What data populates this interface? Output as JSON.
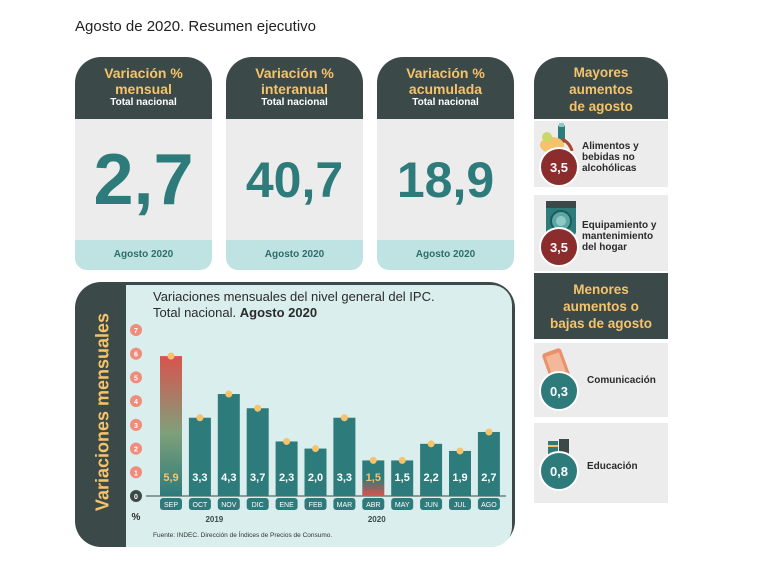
{
  "header": {
    "title": "Agosto de 2020. Resumen ejecutivo"
  },
  "kpis": [
    {
      "line1": "Variación %",
      "line2": "mensual",
      "scope": "Total nacional",
      "value": "2,7",
      "period": "Agosto 2020"
    },
    {
      "line1": "Variación %",
      "line2": "interanual",
      "scope": "Total nacional",
      "value": "40,7",
      "period": "Agosto 2020"
    },
    {
      "line1": "Variación %",
      "line2": "acumulada",
      "scope": "Total nacional",
      "value": "18,9",
      "period": "Agosto 2020"
    }
  ],
  "mayores": {
    "title_lines": [
      "Mayores",
      "aumentos",
      "de agosto"
    ],
    "items": [
      {
        "value": "3,5",
        "label_lines": [
          "Alimentos y",
          "bebidas no",
          "alcohólicas"
        ],
        "icon": "groceries-icon"
      },
      {
        "value": "3,5",
        "label_lines": [
          "Equipamiento y",
          "mantenimiento",
          "del hogar"
        ],
        "icon": "washing-machine-icon"
      }
    ]
  },
  "menores": {
    "title_lines": [
      "Menores",
      "aumentos o",
      "bajas de agosto"
    ],
    "items": [
      {
        "value": "0,3",
        "label_lines": [
          "Comunicación"
        ],
        "icon": "phone-icon"
      },
      {
        "value": "0,8",
        "label_lines": [
          "Educación"
        ],
        "icon": "books-icon"
      }
    ]
  },
  "colors": {
    "dark": "#3b4a48",
    "accent": "#f6c36a",
    "teal": "#2e7b7b",
    "light_teal": "#bfe3e2",
    "red": "#d9534f"
  },
  "chart_data": {
    "type": "bar",
    "title": "Variaciones mensuales del nivel general del IPC.",
    "subtitle_plain": "Total nacional.",
    "subtitle_bold": "Agosto 2020",
    "ylabel": "Variaciones mensuales",
    "yunit": "%",
    "ylim": [
      0,
      7
    ],
    "yticks": [
      "0",
      "1",
      "2",
      "3",
      "4",
      "5",
      "6",
      "7"
    ],
    "categories": [
      "SEP",
      "OCT",
      "NOV",
      "DIC",
      "ENE",
      "FEB",
      "MAR",
      "ABR",
      "MAY",
      "JUN",
      "JUL",
      "AGO"
    ],
    "values": [
      5.9,
      3.3,
      4.3,
      3.7,
      2.3,
      2.0,
      3.3,
      1.5,
      1.5,
      2.2,
      1.9,
      2.7
    ],
    "labels": [
      "5,9",
      "3,3",
      "4,3",
      "3,7",
      "2,3",
      "2,0",
      "3,3",
      "1,5",
      "1,5",
      "2,2",
      "1,9",
      "2,7"
    ],
    "highlight": [
      "max",
      "",
      "",
      "",
      "",
      "",
      "",
      "min",
      "",
      "",
      "",
      ""
    ],
    "years": [
      "2019",
      "2020"
    ],
    "source": "Fuente: INDEC. Dirección de Índices de Precios de Consumo."
  }
}
